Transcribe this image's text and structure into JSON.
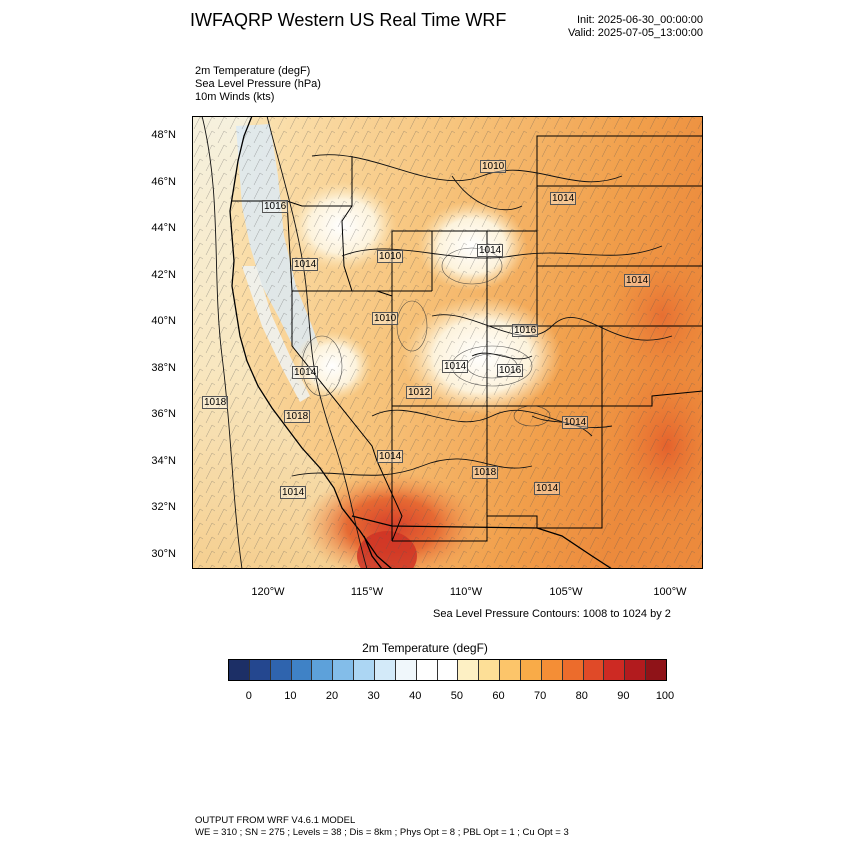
{
  "header": {
    "title": "IWFAQRP Western US Real Time WRF",
    "init": "Init: 2025-06-30_00:00:00",
    "valid": "Valid: 2025-07-05_13:00:00"
  },
  "fields": {
    "temperature": "2m Temperature   (degF)",
    "pressure": "Sea Level Pressure   (hPa)",
    "winds": "10m Winds   (kts)"
  },
  "map": {
    "lat_labels": [
      "48°N",
      "46°N",
      "44°N",
      "42°N",
      "40°N",
      "38°N",
      "36°N",
      "34°N",
      "32°N",
      "30°N"
    ],
    "lon_labels": [
      "120°W",
      "115°W",
      "110°W",
      "105°W",
      "100°W"
    ],
    "isobar_labels": [
      "1010",
      "1014",
      "1016",
      "1014",
      "1014",
      "1014",
      "1010",
      "1010",
      "1016",
      "1014",
      "1014",
      "1018",
      "1018",
      "1014",
      "1014",
      "1018",
      "1014",
      "1014",
      "1012",
      "1016"
    ],
    "colors": {
      "ocean_north": "#f5f3e7",
      "ocean_south": "#f6d9a2",
      "coast_cool": "#dceaf5",
      "plains_hot": "#f1a04a",
      "desert_hot": "#e3552f",
      "lines": "#000000"
    }
  },
  "contour_note": "Sea Level Pressure Contours: 1008 to 1024 by 2",
  "colorbar": {
    "title": "2m Temperature  (degF)",
    "ticks": [
      "0",
      "10",
      "20",
      "30",
      "40",
      "50",
      "60",
      "70",
      "80",
      "90",
      "100"
    ],
    "colors": [
      "#1c2f66",
      "#24478f",
      "#2f64ae",
      "#3f82c6",
      "#5da1da",
      "#83bde9",
      "#acd6f3",
      "#d3eaf9",
      "#f0f7fb",
      "#ffffff",
      "#ffffff",
      "#fdf0c4",
      "#fddf97",
      "#fcc56a",
      "#f9ab48",
      "#f48e36",
      "#ec6c2c",
      "#e04a28",
      "#cd2a23",
      "#b21b1e",
      "#8f1318"
    ]
  },
  "footer": {
    "line1": "OUTPUT FROM WRF V4.6.1 MODEL",
    "line2": "WE = 310 ; SN = 275 ; Levels = 38 ; Dis = 8km ; Phys Opt = 8 ; PBL Opt = 1 ; Cu Opt = 3"
  }
}
